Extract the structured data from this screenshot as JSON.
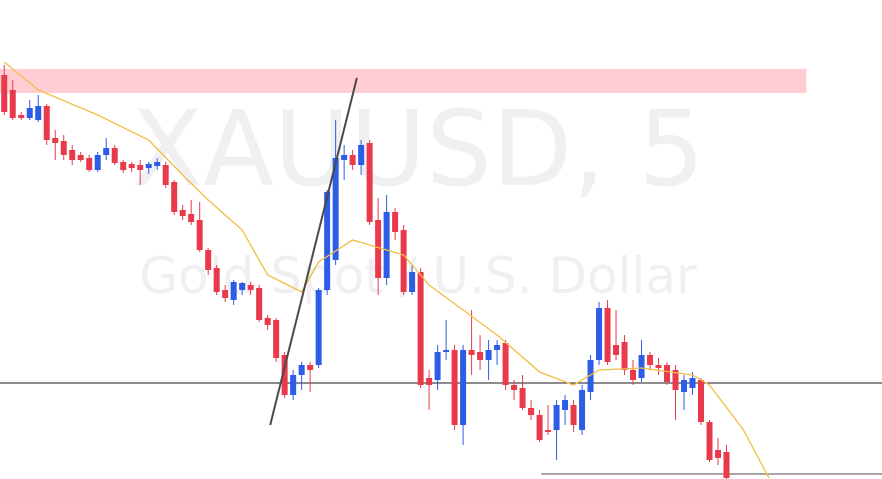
{
  "chart_data": {
    "type": "candlestick",
    "watermark": "XAUUSD, 5",
    "subtitle": "Gold Spot / U.S. Dollar",
    "xlim": [
      -0.5,
      103.3
    ],
    "ylim": [
      0,
      480
    ],
    "up_color": "#2d5ce6",
    "down_color": "#e93a4c",
    "open": [
      405,
      390,
      365,
      362,
      360,
      374,
      342,
      339,
      330,
      325,
      322,
      310,
      325,
      332,
      318,
      316,
      315,
      312,
      314,
      315,
      298,
      270,
      266,
      260,
      230,
      212,
      190,
      180,
      190,
      195,
      192,
      162,
      160,
      125,
      85,
      105,
      115,
      115,
      190,
      220,
      320,
      325,
      315,
      337,
      260,
      202,
      268,
      250,
      188,
      208,
      102,
      100,
      128,
      130,
      55,
      130,
      128,
      120,
      130,
      137,
      95,
      92,
      72,
      65,
      50,
      50,
      70,
      75,
      50,
      88,
      120,
      172,
      135,
      138,
      110,
      102,
      125,
      115,
      115,
      110,
      88,
      92,
      100,
      58,
      30,
      28
    ],
    "high": [
      415,
      400,
      368,
      380,
      385,
      376,
      350,
      345,
      335,
      328,
      325,
      328,
      342,
      335,
      320,
      318,
      320,
      318,
      322,
      318,
      300,
      275,
      280,
      278,
      232,
      215,
      195,
      200,
      198,
      198,
      195,
      165,
      162,
      128,
      110,
      118,
      118,
      192,
      290,
      360,
      335,
      330,
      340,
      340,
      282,
      285,
      272,
      255,
      215,
      212,
      110,
      135,
      160,
      135,
      135,
      170,
      145,
      140,
      140,
      140,
      100,
      105,
      80,
      70,
      75,
      80,
      85,
      80,
      95,
      125,
      178,
      180,
      170,
      145,
      120,
      140,
      128,
      122,
      118,
      115,
      105,
      108,
      102,
      60,
      42,
      35
    ],
    "low": [
      365,
      360,
      360,
      360,
      358,
      335,
      320,
      320,
      315,
      318,
      308,
      308,
      320,
      315,
      307,
      308,
      295,
      306,
      310,
      292,
      265,
      260,
      255,
      228,
      205,
      185,
      178,
      175,
      185,
      185,
      158,
      150,
      118,
      82,
      80,
      90,
      88,
      112,
      185,
      215,
      300,
      310,
      305,
      255,
      185,
      195,
      240,
      185,
      185,
      92,
      70,
      90,
      120,
      50,
      35,
      105,
      110,
      100,
      115,
      90,
      80,
      70,
      60,
      38,
      45,
      20,
      55,
      48,
      45,
      80,
      115,
      115,
      120,
      105,
      95,
      98,
      110,
      105,
      95,
      60,
      70,
      85,
      55,
      18,
      15,
      0
    ],
    "close": [
      368,
      362,
      362,
      372,
      374,
      340,
      337,
      325,
      320,
      320,
      310,
      325,
      332,
      317,
      310,
      312,
      310,
      316,
      318,
      295,
      268,
      264,
      258,
      230,
      210,
      188,
      182,
      198,
      197,
      190,
      160,
      155,
      122,
      85,
      105,
      115,
      110,
      190,
      288,
      322,
      325,
      315,
      335,
      258,
      202,
      268,
      248,
      188,
      208,
      95,
      95,
      128,
      130,
      55,
      130,
      125,
      120,
      130,
      135,
      95,
      90,
      72,
      65,
      40,
      48,
      75,
      80,
      55,
      90,
      120,
      172,
      118,
      125,
      110,
      100,
      125,
      115,
      112,
      98,
      90,
      100,
      102,
      58,
      20,
      22,
      2
    ],
    "moving_average": {
      "color": "#f2bd45",
      "x": [
        0,
        4,
        11,
        17,
        21,
        24,
        28,
        31,
        35,
        37,
        41,
        43,
        47,
        50,
        54,
        58,
        63,
        67,
        70,
        75,
        81,
        83,
        87,
        90
      ],
      "values": [
        418,
        390,
        365,
        340,
        305,
        280,
        250,
        205,
        188,
        218,
        240,
        235,
        225,
        195,
        170,
        145,
        108,
        95,
        110,
        112,
        105,
        95,
        50,
        2
      ]
    },
    "level_line": {
      "value": 97,
      "color": "#1a1a1a"
    },
    "ray_line": {
      "x": 63.2,
      "value": 6,
      "color": "#8a8a8a"
    },
    "trend_line": {
      "x": [
        31.3,
        41.5
      ],
      "values": [
        55,
        402
      ],
      "color": "#4a4a4a"
    },
    "zone": {
      "x_end": 94.4,
      "range": [
        387,
        411
      ],
      "color": "#ffcdd3"
    }
  }
}
